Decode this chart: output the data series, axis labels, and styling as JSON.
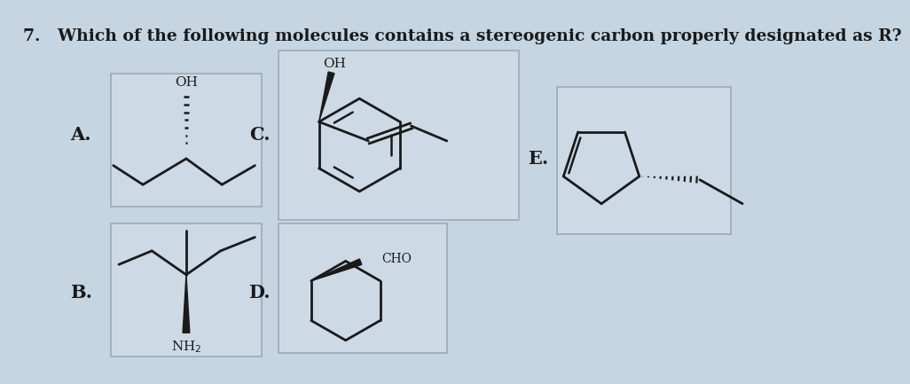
{
  "bg_color": "#c5d5e2",
  "box_facecolor": "#cddae5",
  "box_edgecolor": "#9aaabb",
  "line_color": "#1a1a1a",
  "text_color": "#1a1a1a",
  "title": "7.   Which of the following molecules contains a stereogenic carbon properly designated as R?",
  "title_fontsize": 13.5,
  "label_fontsize": 15
}
